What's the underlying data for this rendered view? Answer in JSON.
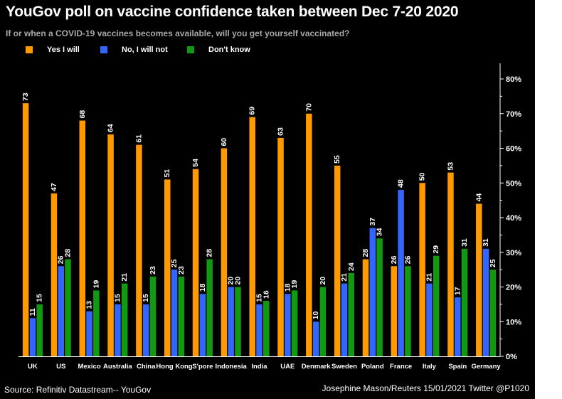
{
  "title": "YouGov poll on vaccine confidence taken between Dec 7-20 2020",
  "subtitle": "If or when a COVID-19 vaccines becomes available, will you get yourself vaccinated?",
  "source": "Source: Refinitiv Datastream-- YouGov",
  "credit": "Josephine Mason/Reuters 15/01/2021 Twitter @P1020",
  "chart_data": {
    "type": "bar",
    "categories": [
      "UK",
      "US",
      "Mexico",
      "Australia",
      "China",
      "Hong Kong",
      "S'pore",
      "Indonesia",
      "India",
      "UAE",
      "Denmark",
      "Sweden",
      "Poland",
      "France",
      "Italy",
      "Spain",
      "Germany"
    ],
    "series": [
      {
        "name": "Yes I will",
        "color": "#ff9900",
        "values": [
          73,
          47,
          68,
          64,
          61,
          51,
          54,
          60,
          69,
          63,
          70,
          55,
          28,
          26,
          50,
          53,
          44
        ]
      },
      {
        "name": "No, I will not",
        "color": "#3366ff",
        "values": [
          11,
          26,
          13,
          15,
          15,
          25,
          18,
          20,
          15,
          18,
          10,
          21,
          37,
          48,
          21,
          17,
          31
        ]
      },
      {
        "name": "Don't know",
        "color": "#119911",
        "values": [
          15,
          28,
          19,
          21,
          23,
          23,
          28,
          20,
          16,
          19,
          20,
          24,
          34,
          26,
          29,
          31,
          25
        ]
      }
    ],
    "yticks": [
      "0%",
      "10%",
      "20%",
      "30%",
      "40%",
      "50%",
      "60%",
      "70%",
      "80%"
    ],
    "ylim": [
      0,
      80
    ],
    "axis_position": "right",
    "legend_position": "top-left",
    "grid": false,
    "data_labels": true
  }
}
